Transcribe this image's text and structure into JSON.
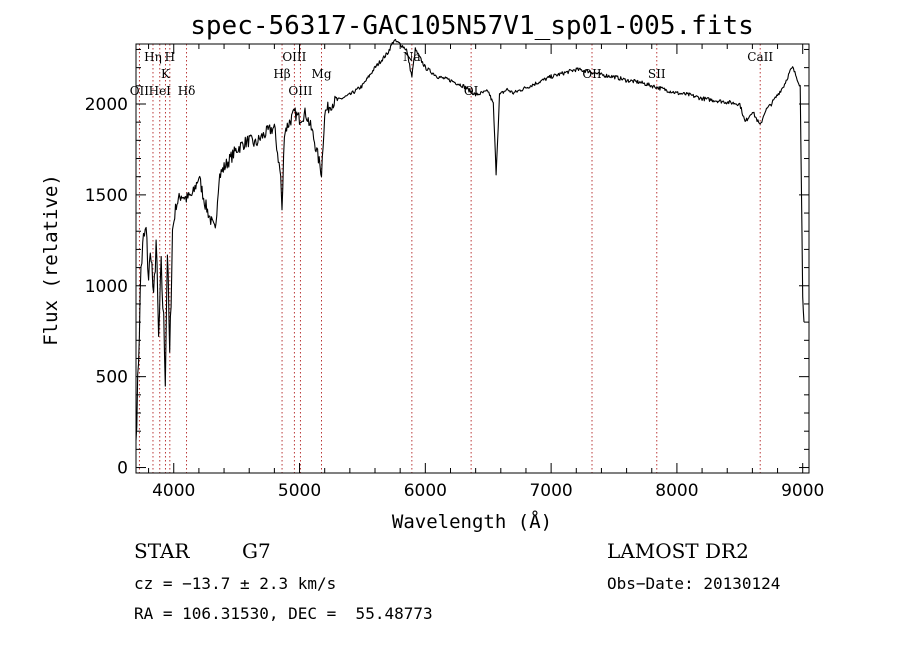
{
  "chart_data": {
    "type": "line",
    "title": "spec-56317-GAC105N57V1_sp01-005.fits",
    "xlabel": "Wavelength (Å)",
    "ylabel": "Flux (relative)",
    "xlim": [
      3700,
      9050
    ],
    "ylim": [
      -30,
      2330
    ],
    "xticks": [
      4000,
      5000,
      6000,
      7000,
      8000,
      9000
    ],
    "yticks": [
      0,
      500,
      1000,
      1500,
      2000
    ],
    "spectral_lines": [
      {
        "label": "OII",
        "x": 3727,
        "row": 3
      },
      {
        "label": "Hη",
        "x": 3835,
        "row": 1
      },
      {
        "label": "HeI",
        "x": 3889,
        "row": 3
      },
      {
        "label": "K",
        "x": 3934,
        "row": 2
      },
      {
        "label": "H",
        "x": 3969,
        "row": 1
      },
      {
        "label": "Hδ",
        "x": 4102,
        "row": 3
      },
      {
        "label": "Hβ",
        "x": 4861,
        "row": 2
      },
      {
        "label": "OIII",
        "x": 4959,
        "row": 1
      },
      {
        "label": "OIII",
        "x": 5007,
        "row": 3
      },
      {
        "label": "Mg",
        "x": 5175,
        "row": 2
      },
      {
        "label": "Na",
        "x": 5893,
        "row": 1
      },
      {
        "label": "OI",
        "x": 6364,
        "row": 3
      },
      {
        "label": "OII",
        "x": 7325,
        "row": 2
      },
      {
        "label": "SII",
        "x": 7840,
        "row": 2
      },
      {
        "label": "CaII",
        "x": 8662,
        "row": 1
      }
    ],
    "flux": {
      "x": [
        3700,
        3720,
        3740,
        3760,
        3780,
        3800,
        3820,
        3840,
        3860,
        3880,
        3900,
        3920,
        3933,
        3950,
        3968,
        3990,
        4020,
        4060,
        4100,
        4150,
        4200,
        4250,
        4300,
        4330,
        4360,
        4400,
        4450,
        4500,
        4550,
        4600,
        4650,
        4700,
        4750,
        4800,
        4850,
        4861,
        4880,
        4920,
        4960,
        5000,
        5050,
        5100,
        5150,
        5175,
        5200,
        5250,
        5300,
        5400,
        5500,
        5600,
        5700,
        5750,
        5800,
        5850,
        5893,
        5920,
        5960,
        6000,
        6100,
        6200,
        6300,
        6400,
        6500,
        6540,
        6563,
        6590,
        6650,
        6700,
        6800,
        6900,
        7000,
        7100,
        7200,
        7300,
        7400,
        7500,
        7600,
        7700,
        7800,
        7900,
        8000,
        8100,
        8200,
        8300,
        8400,
        8500,
        8542,
        8600,
        8662,
        8700,
        8750,
        8800,
        8850,
        8900,
        8920,
        8950,
        8980,
        9000,
        9010
      ],
      "y": [
        150,
        600,
        1100,
        1250,
        1300,
        1050,
        1200,
        900,
        1250,
        700,
        1100,
        800,
        500,
        1200,
        600,
        1300,
        1450,
        1500,
        1480,
        1500,
        1600,
        1450,
        1350,
        1300,
        1600,
        1650,
        1700,
        1750,
        1780,
        1800,
        1780,
        1820,
        1850,
        1870,
        1600,
        1400,
        1850,
        1900,
        1950,
        1920,
        1950,
        1850,
        1700,
        1620,
        1950,
        2000,
        2020,
        2050,
        2100,
        2200,
        2280,
        2350,
        2330,
        2300,
        2150,
        2300,
        2250,
        2200,
        2150,
        2130,
        2100,
        2050,
        2070,
        2000,
        1620,
        2050,
        2080,
        2060,
        2090,
        2120,
        2150,
        2170,
        2190,
        2180,
        2160,
        2150,
        2130,
        2120,
        2100,
        2080,
        2060,
        2050,
        2030,
        2020,
        2010,
        2000,
        1900,
        1960,
        1880,
        1960,
        2000,
        2050,
        2100,
        2180,
        2200,
        2150,
        2100,
        950,
        800
      ]
    }
  },
  "footer": {
    "object_class": "STAR",
    "subclass": "G7",
    "survey": "LAMOST DR2",
    "velocity": "cz = −13.7 ± 2.3 km/s",
    "obs_date": "Obs−Date: 20130124",
    "coordinates": "RA = 106.31530, DEC =  55.48773"
  }
}
